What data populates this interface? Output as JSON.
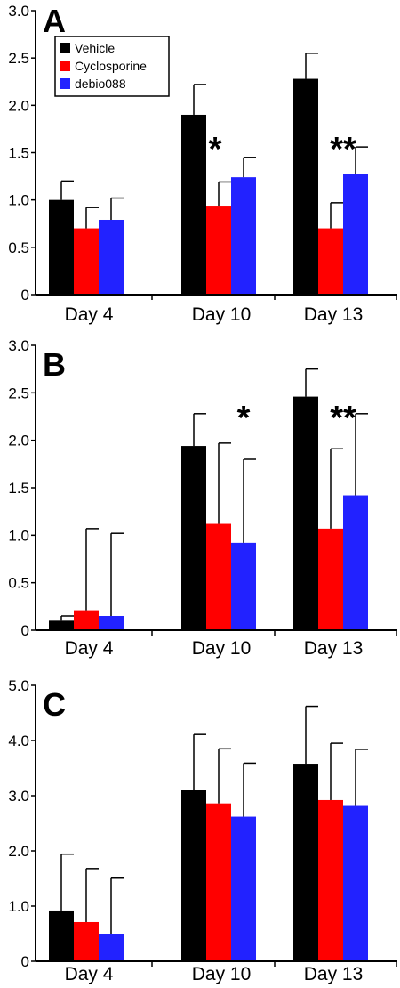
{
  "chart_data": [
    {
      "type": "bar",
      "panel": "A",
      "categories": [
        "Day 4",
        "Day 10",
        "Day 13"
      ],
      "ylim": [
        0,
        3.0
      ],
      "yticks": [
        "0",
        "0.5",
        "1.0",
        "1.5",
        "2.0",
        "2.5",
        "3.0"
      ],
      "legend": {
        "position": "top-left",
        "entries": [
          "Vehicle",
          "Cyclosporine",
          "debio088"
        ]
      },
      "series": [
        {
          "name": "Vehicle",
          "color": "#000000",
          "values": [
            1.0,
            1.9,
            2.28
          ],
          "errors": [
            0.2,
            0.32,
            0.27
          ]
        },
        {
          "name": "Cyclosporine",
          "color": "#ff0000",
          "values": [
            0.7,
            0.94,
            0.7
          ],
          "errors": [
            0.22,
            0.25,
            0.27
          ]
        },
        {
          "name": "debio088",
          "color": "#2222ff",
          "values": [
            0.79,
            1.24,
            1.27
          ],
          "errors": [
            0.23,
            0.21,
            0.29
          ]
        }
      ],
      "annotations": [
        {
          "text": "*",
          "category": "Day 10"
        },
        {
          "text": "**",
          "category": "Day 13"
        }
      ]
    },
    {
      "type": "bar",
      "panel": "B",
      "categories": [
        "Day 4",
        "Day 10",
        "Day 13"
      ],
      "ylim": [
        0,
        3.0
      ],
      "yticks": [
        "0",
        "0.5",
        "1.0",
        "1.5",
        "2.0",
        "2.5",
        "3.0"
      ],
      "series": [
        {
          "name": "Vehicle",
          "color": "#000000",
          "values": [
            0.1,
            1.94,
            2.46
          ],
          "errors": [
            0.05,
            0.34,
            0.29
          ]
        },
        {
          "name": "Cyclosporine",
          "color": "#ff0000",
          "values": [
            0.21,
            1.12,
            1.07
          ],
          "errors": [
            0.86,
            0.85,
            0.84
          ]
        },
        {
          "name": "debio088",
          "color": "#2222ff",
          "values": [
            0.15,
            0.92,
            1.42
          ],
          "errors": [
            0.87,
            0.88,
            0.86
          ]
        }
      ],
      "annotations": [
        {
          "text": "*",
          "category": "Day 10"
        },
        {
          "text": "**",
          "category": "Day 13"
        }
      ]
    },
    {
      "type": "bar",
      "panel": "C",
      "categories": [
        "Day 4",
        "Day 10",
        "Day 13"
      ],
      "ylim": [
        0,
        5.0
      ],
      "yticks": [
        "0",
        "1.0",
        "2.0",
        "3.0",
        "4.0",
        "5.0"
      ],
      "series": [
        {
          "name": "Vehicle",
          "color": "#000000",
          "values": [
            0.92,
            3.1,
            3.58
          ],
          "errors": [
            1.02,
            1.01,
            1.04
          ]
        },
        {
          "name": "Cyclosporine",
          "color": "#ff0000",
          "values": [
            0.71,
            2.86,
            2.92
          ],
          "errors": [
            0.97,
            0.99,
            1.03
          ]
        },
        {
          "name": "debio088",
          "color": "#2222ff",
          "values": [
            0.5,
            2.62,
            2.83
          ],
          "errors": [
            1.02,
            0.97,
            1.01
          ]
        }
      ],
      "annotations": []
    }
  ]
}
